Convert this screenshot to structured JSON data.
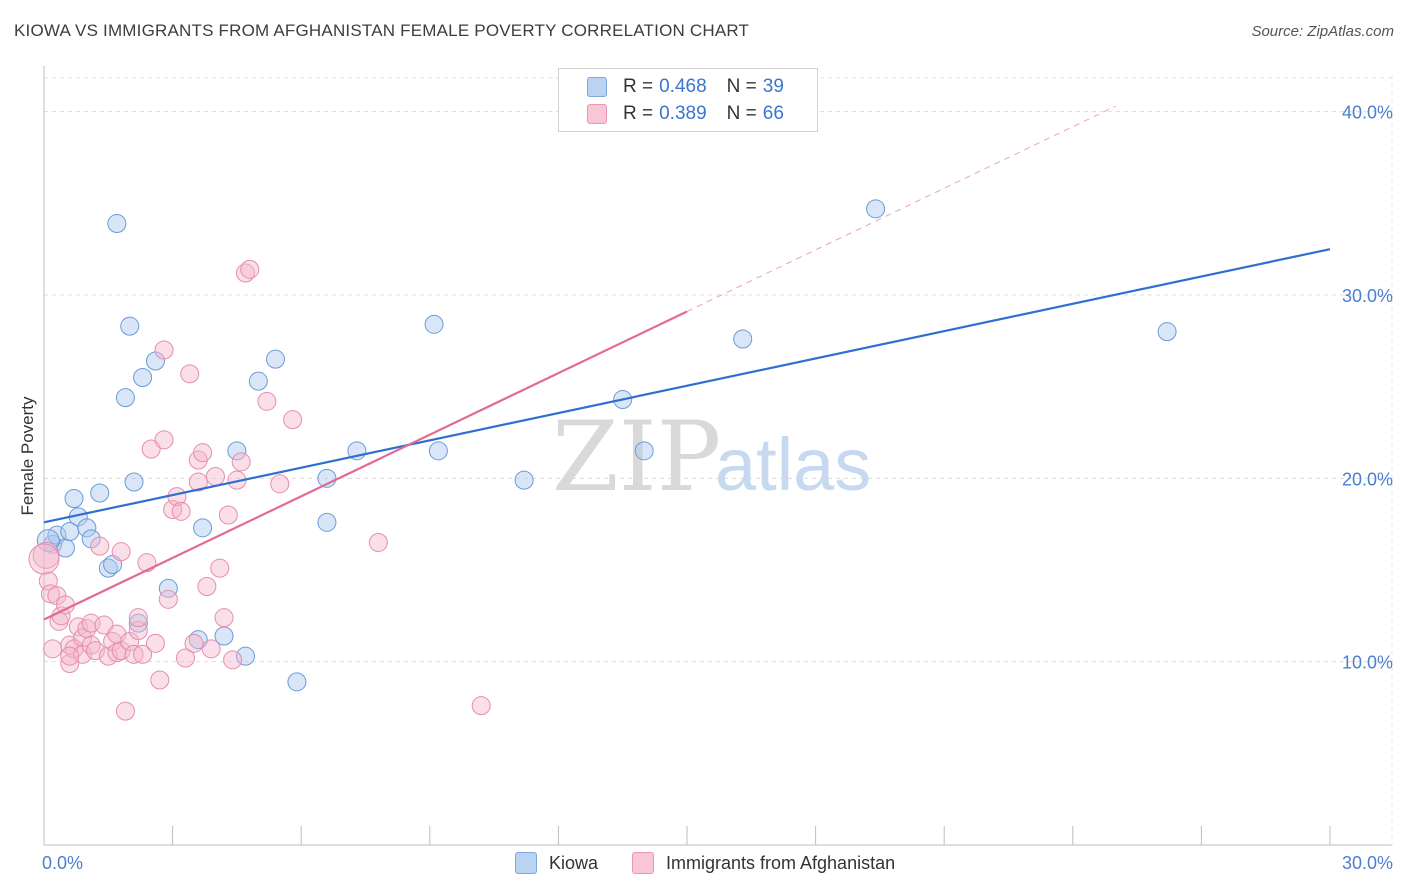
{
  "title": "KIOWA VS IMMIGRANTS FROM AFGHANISTAN FEMALE POVERTY CORRELATION CHART",
  "source": "Source: ZipAtlas.com",
  "watermark": {
    "zip": "ZIP",
    "atlas": "atlas"
  },
  "legend": {
    "series1": {
      "r_label": "R =",
      "r_value": "0.468",
      "n_label": "N =",
      "n_value": "39"
    },
    "series2": {
      "r_label": "R =",
      "r_value": "0.389",
      "n_label": "N =",
      "n_value": "66"
    }
  },
  "bottom_legend": {
    "series1": "Kiowa",
    "series2": "Immigrants from Afghanistan"
  },
  "chart_data": {
    "type": "scatter",
    "title": "KIOWA VS IMMIGRANTS FROM AFGHANISTAN FEMALE POVERTY CORRELATION CHART",
    "xlabel": "",
    "ylabel": "Female Poverty",
    "xlim": [
      0,
      30
    ],
    "ylim": [
      0,
      42
    ],
    "x_tick_labels": [
      "0.0%",
      "30.0%"
    ],
    "y_ticks": [
      10,
      20,
      30,
      40
    ],
    "y_tick_labels": [
      "10.0%",
      "20.0%",
      "30.0%",
      "40.0%"
    ],
    "grid": true,
    "colors": {
      "series1": "#3a75cf",
      "series2": "#e8709a",
      "series1_fill": "#aac8ee",
      "series2_fill": "#f5b8cc"
    },
    "series": [
      {
        "name": "Kiowa",
        "trend": {
          "x0": 0,
          "y0": 17.6,
          "x1": 30,
          "y1": 32.5
        },
        "points": [
          [
            0.2,
            16.4
          ],
          [
            0.3,
            16.9
          ],
          [
            0.5,
            16.2
          ],
          [
            0.6,
            17.1
          ],
          [
            0.7,
            18.9
          ],
          [
            0.8,
            17.9
          ],
          [
            1.0,
            17.3
          ],
          [
            1.1,
            16.7
          ],
          [
            1.3,
            19.2
          ],
          [
            1.5,
            15.1
          ],
          [
            1.6,
            15.3
          ],
          [
            1.7,
            33.9
          ],
          [
            1.9,
            24.4
          ],
          [
            2.0,
            28.3
          ],
          [
            2.1,
            19.8
          ],
          [
            2.2,
            12.1
          ],
          [
            2.3,
            25.5
          ],
          [
            2.6,
            26.4
          ],
          [
            2.9,
            14.0
          ],
          [
            3.6,
            11.2
          ],
          [
            3.7,
            17.3
          ],
          [
            4.2,
            11.4
          ],
          [
            4.5,
            21.5
          ],
          [
            4.7,
            10.3
          ],
          [
            5.0,
            25.3
          ],
          [
            5.4,
            26.5
          ],
          [
            5.9,
            8.9
          ],
          [
            6.6,
            20.0
          ],
          [
            6.6,
            17.6
          ],
          [
            7.3,
            21.5
          ],
          [
            9.1,
            28.4
          ],
          [
            9.2,
            21.5
          ],
          [
            11.2,
            19.9
          ],
          [
            13.5,
            24.3
          ],
          [
            14.0,
            21.5
          ],
          [
            16.3,
            27.6
          ],
          [
            19.4,
            34.7
          ],
          [
            26.2,
            28.0
          ],
          [
            0.1,
            16.6
          ]
        ]
      },
      {
        "name": "Immigrants from Afghanistan",
        "trend": {
          "x0": 0,
          "y0": 12.3,
          "x1": 15,
          "y1": 29.1
        },
        "trend_extension": {
          "x0": 15,
          "y0": 29.1,
          "x1": 25,
          "y1": 40.3
        },
        "points": [
          [
            0.05,
            15.8
          ],
          [
            0.1,
            14.4
          ],
          [
            0.15,
            13.7
          ],
          [
            0.2,
            10.7
          ],
          [
            0.3,
            13.6
          ],
          [
            0.35,
            12.2
          ],
          [
            0.4,
            12.5
          ],
          [
            0.5,
            13.1
          ],
          [
            0.6,
            10.9
          ],
          [
            0.6,
            9.9
          ],
          [
            0.7,
            10.7
          ],
          [
            0.8,
            11.9
          ],
          [
            0.9,
            11.3
          ],
          [
            0.9,
            10.4
          ],
          [
            1.0,
            11.8
          ],
          [
            1.1,
            12.1
          ],
          [
            1.1,
            10.9
          ],
          [
            1.2,
            10.6
          ],
          [
            1.3,
            16.3
          ],
          [
            1.4,
            12.0
          ],
          [
            1.5,
            10.3
          ],
          [
            1.6,
            11.1
          ],
          [
            1.7,
            10.5
          ],
          [
            1.7,
            11.5
          ],
          [
            1.8,
            10.6
          ],
          [
            1.9,
            7.3
          ],
          [
            2.0,
            11.1
          ],
          [
            2.1,
            10.4
          ],
          [
            2.2,
            11.7
          ],
          [
            2.2,
            12.4
          ],
          [
            2.3,
            10.4
          ],
          [
            2.4,
            15.4
          ],
          [
            2.5,
            21.6
          ],
          [
            2.6,
            11.0
          ],
          [
            2.7,
            9.0
          ],
          [
            2.8,
            27.0
          ],
          [
            2.8,
            22.1
          ],
          [
            2.9,
            13.4
          ],
          [
            3.0,
            18.3
          ],
          [
            3.1,
            19.0
          ],
          [
            3.2,
            18.2
          ],
          [
            3.3,
            10.2
          ],
          [
            3.4,
            25.7
          ],
          [
            3.5,
            11.0
          ],
          [
            3.6,
            19.8
          ],
          [
            3.6,
            21.0
          ],
          [
            3.7,
            21.4
          ],
          [
            3.8,
            14.1
          ],
          [
            3.9,
            10.7
          ],
          [
            4.0,
            20.1
          ],
          [
            4.1,
            15.1
          ],
          [
            4.2,
            12.4
          ],
          [
            4.3,
            18.0
          ],
          [
            4.4,
            10.1
          ],
          [
            4.5,
            19.9
          ],
          [
            4.6,
            20.9
          ],
          [
            4.7,
            31.2
          ],
          [
            4.8,
            31.4
          ],
          [
            5.2,
            24.2
          ],
          [
            5.5,
            19.7
          ],
          [
            5.8,
            23.2
          ],
          [
            7.8,
            16.5
          ],
          [
            10.2,
            7.6
          ],
          [
            0.6,
            10.3
          ],
          [
            1.8,
            16.0
          ],
          [
            0.0,
            15.6
          ]
        ]
      }
    ]
  }
}
